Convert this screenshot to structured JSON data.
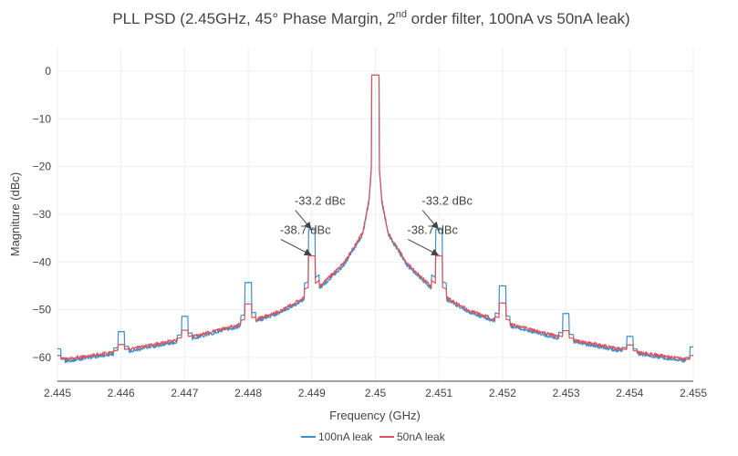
{
  "chart_data": {
    "type": "line",
    "title": "PLL PSD (2.45GHz, 45° Phase Margin, 2",
    "title_sup": "nd",
    "title_rest": " order filter, 100nA vs 50nA leak)",
    "xlabel": "Frequency (GHz)",
    "ylabel": "Magniture (dBc)",
    "xlim": [
      2.445,
      2.455
    ],
    "ylim": [
      -65,
      5
    ],
    "xticks": [
      2.445,
      2.446,
      2.447,
      2.448,
      2.449,
      2.45,
      2.451,
      2.452,
      2.453,
      2.454,
      2.455
    ],
    "xtick_labels": [
      "2.445",
      "2.446",
      "2.447",
      "2.448",
      "2.449",
      "2.45",
      "2.451",
      "2.452",
      "2.453",
      "2.454",
      "2.455"
    ],
    "yticks": [
      0,
      -10,
      -20,
      -30,
      -40,
      -50,
      -60
    ],
    "ytick_labels": [
      "0",
      "−10",
      "−20",
      "−30",
      "−40",
      "−50",
      "−60"
    ],
    "grid": true,
    "legend_position": "bottom-center",
    "carrier": {
      "x": 2.45,
      "y": -0.8
    },
    "floor": [
      {
        "x": 2.445,
        "y": -60.8
      },
      {
        "x": 2.446,
        "y": -58.8
      },
      {
        "x": 2.447,
        "y": -56.2
      },
      {
        "x": 2.448,
        "y": -52.8
      },
      {
        "x": 2.4485,
        "y": -50.4
      },
      {
        "x": 2.449,
        "y": -46.8
      },
      {
        "x": 2.4495,
        "y": -40.5
      },
      {
        "x": 2.4498,
        "y": -34.0
      },
      {
        "x": 2.4499,
        "y": -27.0
      },
      {
        "x": 2.44995,
        "y": -18.0
      },
      {
        "x": 2.45,
        "y": -0.8
      }
    ],
    "series": [
      {
        "name": "100nA leak",
        "color": "#3a8fcf",
        "spurs": [
          {
            "x": 2.446,
            "y": -54.6
          },
          {
            "x": 2.447,
            "y": -51.4
          },
          {
            "x": 2.448,
            "y": -44.3
          },
          {
            "x": 2.449,
            "y": -33.2
          },
          {
            "x": 2.451,
            "y": -33.2
          },
          {
            "x": 2.452,
            "y": -45.0
          },
          {
            "x": 2.453,
            "y": -50.8
          },
          {
            "x": 2.454,
            "y": -55.6
          },
          {
            "x": 2.455,
            "y": -57.8
          },
          {
            "x": 2.445,
            "y": -58.2
          }
        ]
      },
      {
        "name": "50nA leak",
        "color": "#d8545f",
        "spurs": [
          {
            "x": 2.446,
            "y": -57.3
          },
          {
            "x": 2.447,
            "y": -54.3
          },
          {
            "x": 2.448,
            "y": -48.8
          },
          {
            "x": 2.449,
            "y": -38.7
          },
          {
            "x": 2.451,
            "y": -38.7
          },
          {
            "x": 2.452,
            "y": -48.6
          },
          {
            "x": 2.453,
            "y": -54.4
          },
          {
            "x": 2.454,
            "y": -57.4
          },
          {
            "x": 2.455,
            "y": -59.6
          },
          {
            "x": 2.445,
            "y": -59.6
          }
        ]
      }
    ],
    "annotations": [
      {
        "text": "-33.2 dBc",
        "x": 2.449,
        "y": -33.2
      },
      {
        "text": "-38.7 dBc",
        "x": 2.449,
        "y": -38.7
      },
      {
        "text": "-33.2 dBc",
        "x": 2.451,
        "y": -33.2
      },
      {
        "text": "-38.7 dBc",
        "x": 2.451,
        "y": -38.7
      }
    ]
  }
}
